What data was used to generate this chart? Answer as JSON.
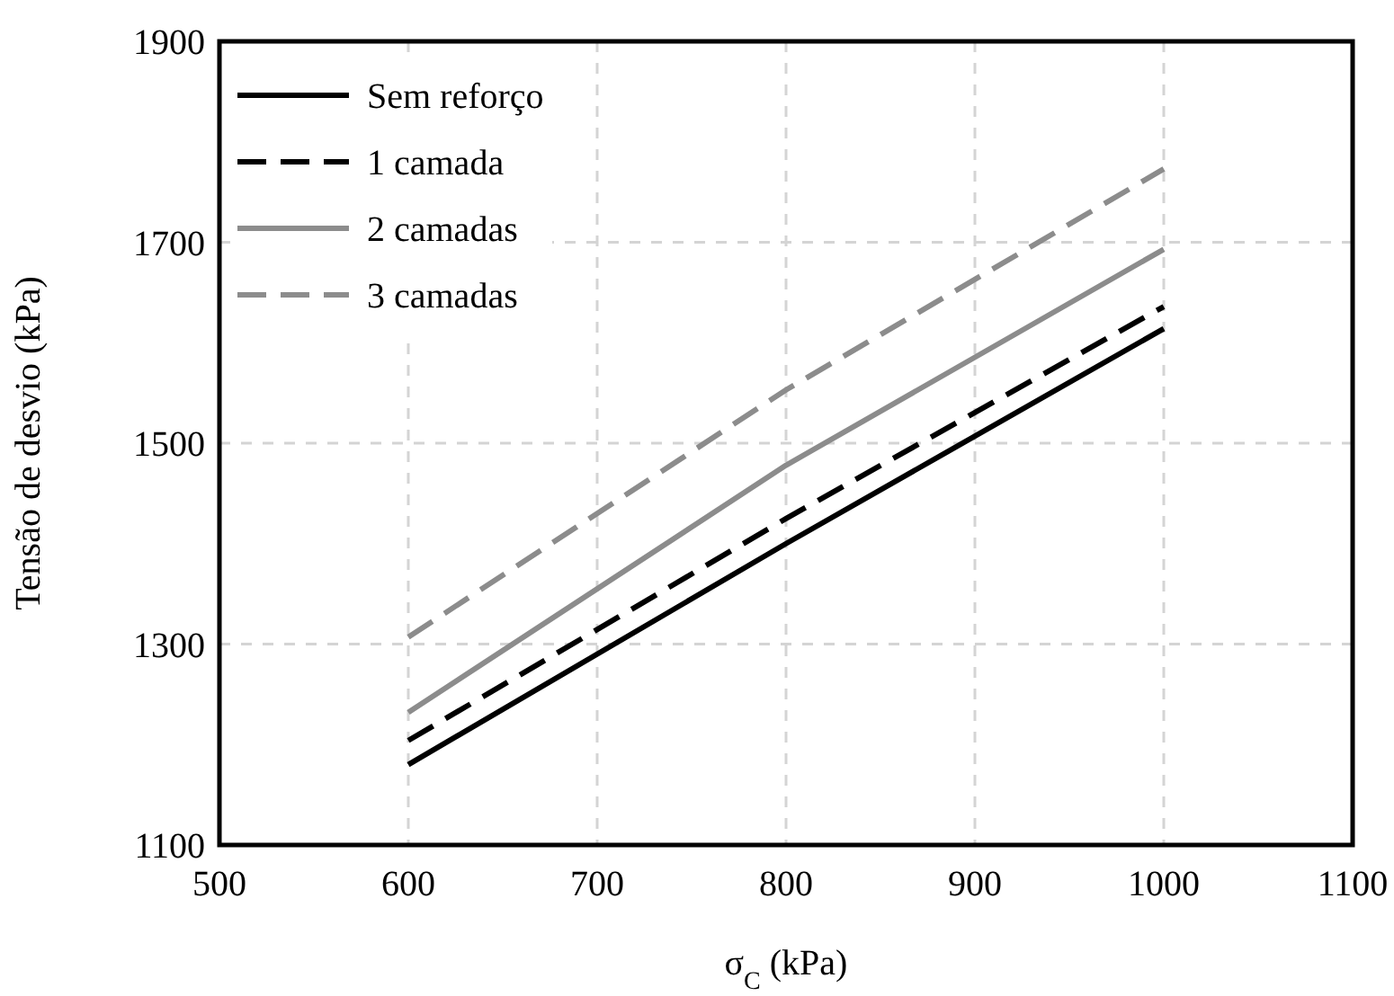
{
  "chart_data": {
    "type": "line",
    "xlabel": "σ$_{C}$ (kPa)",
    "ylabel": "Tensão de desvio (kPa)",
    "x": [
      600,
      800,
      1000
    ],
    "xlim": [
      500,
      1100
    ],
    "xticks": [
      500,
      600,
      700,
      800,
      900,
      1000,
      1100
    ],
    "ylim": [
      1100,
      1900
    ],
    "yticks": [
      1100,
      1300,
      1500,
      1700,
      1900
    ],
    "grid": true,
    "legend": "top left",
    "marker": "none",
    "series": [
      {
        "name": "Sem reforço",
        "color": "#000000",
        "line_style": "solid",
        "values": [
          1180,
          1400,
          1614
        ]
      },
      {
        "name": "1 camada",
        "color": "#000000",
        "line_style": "dashed",
        "values": [
          1204,
          1425,
          1636
        ]
      },
      {
        "name": "2 camadas",
        "color": "#8c8c8c",
        "line_style": "solid",
        "values": [
          1232,
          1478,
          1693
        ]
      },
      {
        "name": "3 camadas",
        "color": "#8c8c8c",
        "line_style": "dashed",
        "values": [
          1307,
          1553,
          1773
        ]
      }
    ]
  }
}
